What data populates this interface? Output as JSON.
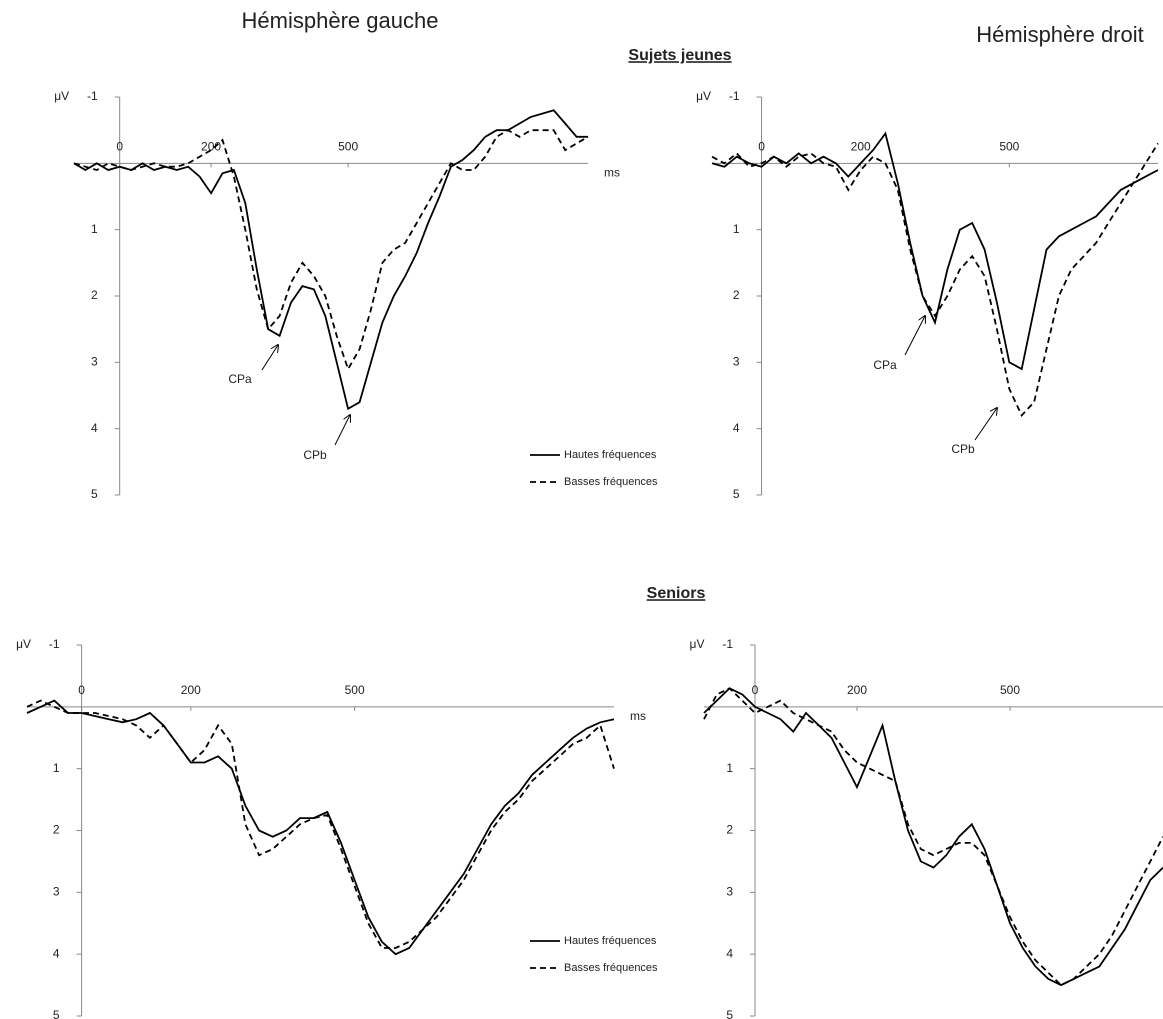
{
  "column_titles": [
    "Hémisphère gauche",
    "Hémisphère droit"
  ],
  "row_titles": [
    "Sujets jeunes",
    "Seniors"
  ],
  "chart_data": [
    {
      "type": "line",
      "x_label": "ms",
      "y_label": "μV",
      "y_reversed": true,
      "xlim": [
        -100,
        1025
      ],
      "xticks": [
        0,
        200,
        500
      ],
      "ylim": [
        -1,
        5
      ],
      "yticks": [
        -1,
        1,
        2,
        3,
        4,
        5
      ],
      "x": [
        -100,
        -75,
        -50,
        -25,
        0,
        25,
        50,
        75,
        100,
        125,
        150,
        175,
        200,
        225,
        250,
        275,
        300,
        325,
        350,
        375,
        400,
        425,
        450,
        475,
        500,
        525,
        550,
        575,
        600,
        625,
        650,
        675,
        700,
        725,
        750,
        775,
        800,
        825,
        850,
        875,
        900,
        925,
        950,
        975,
        1000,
        1025
      ],
      "series": [
        {
          "name": "Hautes fréquences",
          "color": "#000000",
          "dash": "solid",
          "values": [
            0,
            0.1,
            0,
            0.1,
            0.05,
            0.1,
            0,
            0.1,
            0.05,
            0.1,
            0.05,
            0.2,
            0.45,
            0.15,
            0.1,
            0.6,
            1.6,
            2.5,
            2.6,
            2.1,
            1.85,
            1.9,
            2.3,
            3.0,
            3.7,
            3.6,
            3.0,
            2.4,
            2.0,
            1.7,
            1.35,
            0.9,
            0.5,
            0.05,
            -0.05,
            -0.2,
            -0.4,
            -0.5,
            -0.5,
            -0.6,
            -0.7,
            -0.75,
            -0.8,
            -0.6,
            -0.4,
            -0.4
          ]
        },
        {
          "name": "Basses fréquences",
          "color": "#000000",
          "dash": "dashed",
          "values": [
            0,
            0.05,
            0.1,
            0,
            0.05,
            0.1,
            0.05,
            0,
            0.05,
            0.05,
            0,
            -0.1,
            -0.2,
            -0.35,
            0.2,
            1.0,
            1.9,
            2.5,
            2.3,
            1.8,
            1.5,
            1.7,
            2.0,
            2.6,
            3.1,
            2.8,
            2.2,
            1.5,
            1.3,
            1.2,
            0.9,
            0.6,
            0.3,
            0,
            0.1,
            0.1,
            -0.1,
            -0.4,
            -0.5,
            -0.4,
            -0.5,
            -0.5,
            -0.5,
            -0.2,
            -0.3,
            -0.4
          ]
        }
      ],
      "legend": "lower right",
      "annotations": [
        "CPa",
        "CPb"
      ]
    },
    {
      "type": "line",
      "y_label": "μV",
      "y_reversed": true,
      "xlim": [
        -100,
        800
      ],
      "xticks": [
        0,
        200,
        500
      ],
      "ylim": [
        -1,
        5
      ],
      "yticks": [
        -1,
        1,
        2,
        3,
        4,
        5
      ],
      "x": [
        -100,
        -75,
        -50,
        -25,
        0,
        25,
        50,
        75,
        100,
        125,
        150,
        175,
        200,
        225,
        250,
        275,
        300,
        325,
        350,
        375,
        400,
        425,
        450,
        475,
        500,
        525,
        550,
        575,
        600,
        625,
        650,
        675,
        700,
        725,
        750,
        775,
        800
      ],
      "series": [
        {
          "name": "Hautes fréquences",
          "color": "#000000",
          "dash": "solid",
          "values": [
            0,
            0.05,
            -0.1,
            0,
            0.05,
            -0.1,
            0,
            -0.15,
            0,
            -0.1,
            0,
            0.2,
            0,
            -0.2,
            -0.45,
            0.3,
            1.2,
            2.0,
            2.4,
            1.6,
            1.0,
            0.9,
            1.3,
            2.1,
            3.0,
            3.1,
            2.2,
            1.3,
            1.1,
            1.0,
            0.9,
            0.8,
            0.6,
            0.4,
            0.3,
            0.2,
            0.1
          ]
        },
        {
          "name": "Basses fréquences",
          "color": "#000000",
          "dash": "dashed",
          "values": [
            -0.1,
            0,
            -0.15,
            0.05,
            0,
            -0.1,
            0.05,
            -0.1,
            -0.15,
            0,
            0.05,
            0.4,
            0.1,
            -0.1,
            0,
            0.4,
            1.3,
            2.0,
            2.3,
            2.0,
            1.6,
            1.4,
            1.7,
            2.5,
            3.4,
            3.8,
            3.6,
            2.8,
            2.0,
            1.6,
            1.4,
            1.2,
            0.9,
            0.6,
            0.3,
            0,
            -0.3
          ]
        }
      ],
      "annotations": [
        "CPa",
        "CPb"
      ]
    },
    {
      "type": "line",
      "x_label": "ms",
      "y_label": "μV",
      "y_reversed": true,
      "xlim": [
        -100,
        975
      ],
      "xticks": [
        0,
        200,
        500
      ],
      "ylim": [
        -1,
        5
      ],
      "yticks": [
        -1,
        1,
        2,
        3,
        4,
        5
      ],
      "x": [
        -100,
        -75,
        -50,
        -25,
        0,
        25,
        50,
        75,
        100,
        125,
        150,
        175,
        200,
        225,
        250,
        275,
        300,
        325,
        350,
        375,
        400,
        425,
        450,
        475,
        500,
        525,
        550,
        575,
        600,
        625,
        650,
        675,
        700,
        725,
        750,
        775,
        800,
        825,
        850,
        875,
        900,
        925,
        950,
        975
      ],
      "series": [
        {
          "name": "Hautes fréquences",
          "color": "#000000",
          "dash": "solid",
          "values": [
            0.1,
            0,
            -0.1,
            0.1,
            0.1,
            0.15,
            0.2,
            0.25,
            0.2,
            0.1,
            0.3,
            0.6,
            0.9,
            0.9,
            0.8,
            1.0,
            1.6,
            2.0,
            2.1,
            2.0,
            1.8,
            1.8,
            1.7,
            2.2,
            2.8,
            3.4,
            3.8,
            4.0,
            3.9,
            3.6,
            3.3,
            3.0,
            2.7,
            2.3,
            1.9,
            1.6,
            1.4,
            1.1,
            0.9,
            0.7,
            0.5,
            0.35,
            0.25,
            0.2
          ]
        },
        {
          "name": "Basses fréquences",
          "color": "#000000",
          "dash": "dashed",
          "values": [
            0,
            -0.1,
            0,
            0.1,
            0.1,
            0.1,
            0.15,
            0.2,
            0.3,
            0.5,
            0.3,
            0.6,
            0.9,
            0.7,
            0.3,
            0.6,
            1.9,
            2.4,
            2.3,
            2.1,
            1.9,
            1.8,
            1.75,
            2.3,
            2.9,
            3.5,
            3.9,
            3.9,
            3.8,
            3.6,
            3.4,
            3.1,
            2.8,
            2.4,
            2.0,
            1.7,
            1.5,
            1.2,
            1.0,
            0.8,
            0.6,
            0.5,
            0.3,
            1.0
          ]
        }
      ],
      "legend": "lower right"
    },
    {
      "type": "line",
      "y_label": "μV",
      "y_reversed": true,
      "xlim": [
        -100,
        800
      ],
      "xticks": [
        0,
        200,
        500
      ],
      "ylim": [
        -1,
        5
      ],
      "yticks": [
        -1,
        1,
        2,
        3,
        4,
        5
      ],
      "x": [
        -100,
        -75,
        -50,
        -25,
        0,
        25,
        50,
        75,
        100,
        125,
        150,
        175,
        200,
        225,
        250,
        275,
        300,
        325,
        350,
        375,
        400,
        425,
        450,
        475,
        500,
        525,
        550,
        575,
        600,
        625,
        650,
        675,
        700,
        725,
        750,
        775,
        800
      ],
      "series": [
        {
          "name": "Hautes fréquences",
          "color": "#000000",
          "dash": "solid",
          "values": [
            0.1,
            -0.1,
            -0.3,
            -0.2,
            0,
            0.1,
            0.2,
            0.4,
            0.1,
            0.3,
            0.5,
            0.9,
            1.3,
            0.8,
            0.3,
            1.2,
            2.0,
            2.5,
            2.6,
            2.4,
            2.1,
            1.9,
            2.3,
            2.9,
            3.5,
            3.9,
            4.2,
            4.4,
            4.5,
            4.4,
            4.3,
            4.2,
            3.9,
            3.6,
            3.2,
            2.8,
            2.6
          ]
        },
        {
          "name": "Basses fréquences",
          "color": "#000000",
          "dash": "dashed",
          "values": [
            0.2,
            -0.2,
            -0.3,
            -0.1,
            0.1,
            0,
            -0.1,
            0.1,
            0.2,
            0.3,
            0.4,
            0.7,
            0.9,
            1.0,
            1.1,
            1.2,
            1.9,
            2.3,
            2.4,
            2.3,
            2.2,
            2.2,
            2.4,
            2.9,
            3.4,
            3.8,
            4.1,
            4.3,
            4.5,
            4.4,
            4.2,
            4.0,
            3.7,
            3.3,
            2.9,
            2.5,
            2.1
          ]
        }
      ]
    }
  ]
}
